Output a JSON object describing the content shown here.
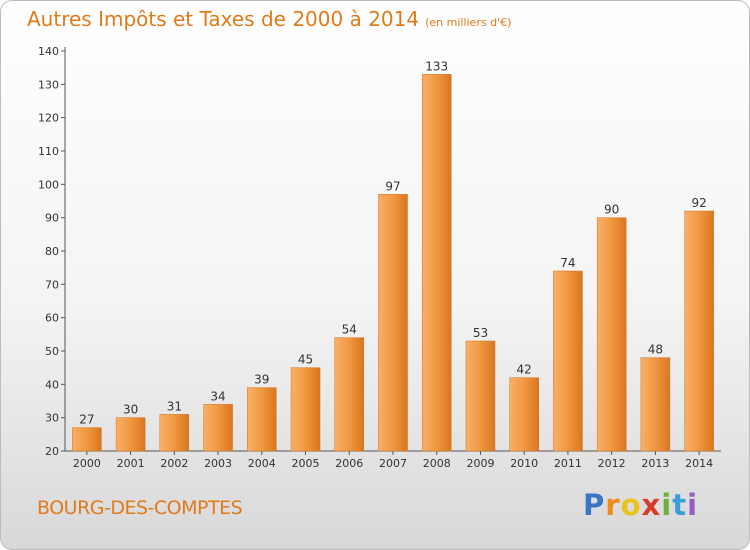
{
  "title": "Autres Impôts et Taxes de 2000 à 2014",
  "title_unit": "(en milliers d'€)",
  "place": "BOURG-DES-COMPTES",
  "logo": "Proxiti",
  "colors": {
    "bar": "#f0963c",
    "bar_dark": "#d4721e",
    "text_accent": "#e07a1a"
  },
  "chart_data": {
    "type": "bar",
    "categories": [
      "2000",
      "2001",
      "2002",
      "2003",
      "2004",
      "2005",
      "2006",
      "2007",
      "2008",
      "2009",
      "2010",
      "2011",
      "2012",
      "2013",
      "2014"
    ],
    "values": [
      27,
      30,
      31,
      34,
      39,
      45,
      54,
      97,
      133,
      53,
      42,
      74,
      90,
      48,
      92
    ],
    "ylim": [
      20,
      140
    ],
    "yticks": [
      20,
      30,
      40,
      50,
      60,
      70,
      80,
      90,
      100,
      110,
      120,
      130,
      140
    ],
    "grid": false,
    "data_labels": true
  }
}
